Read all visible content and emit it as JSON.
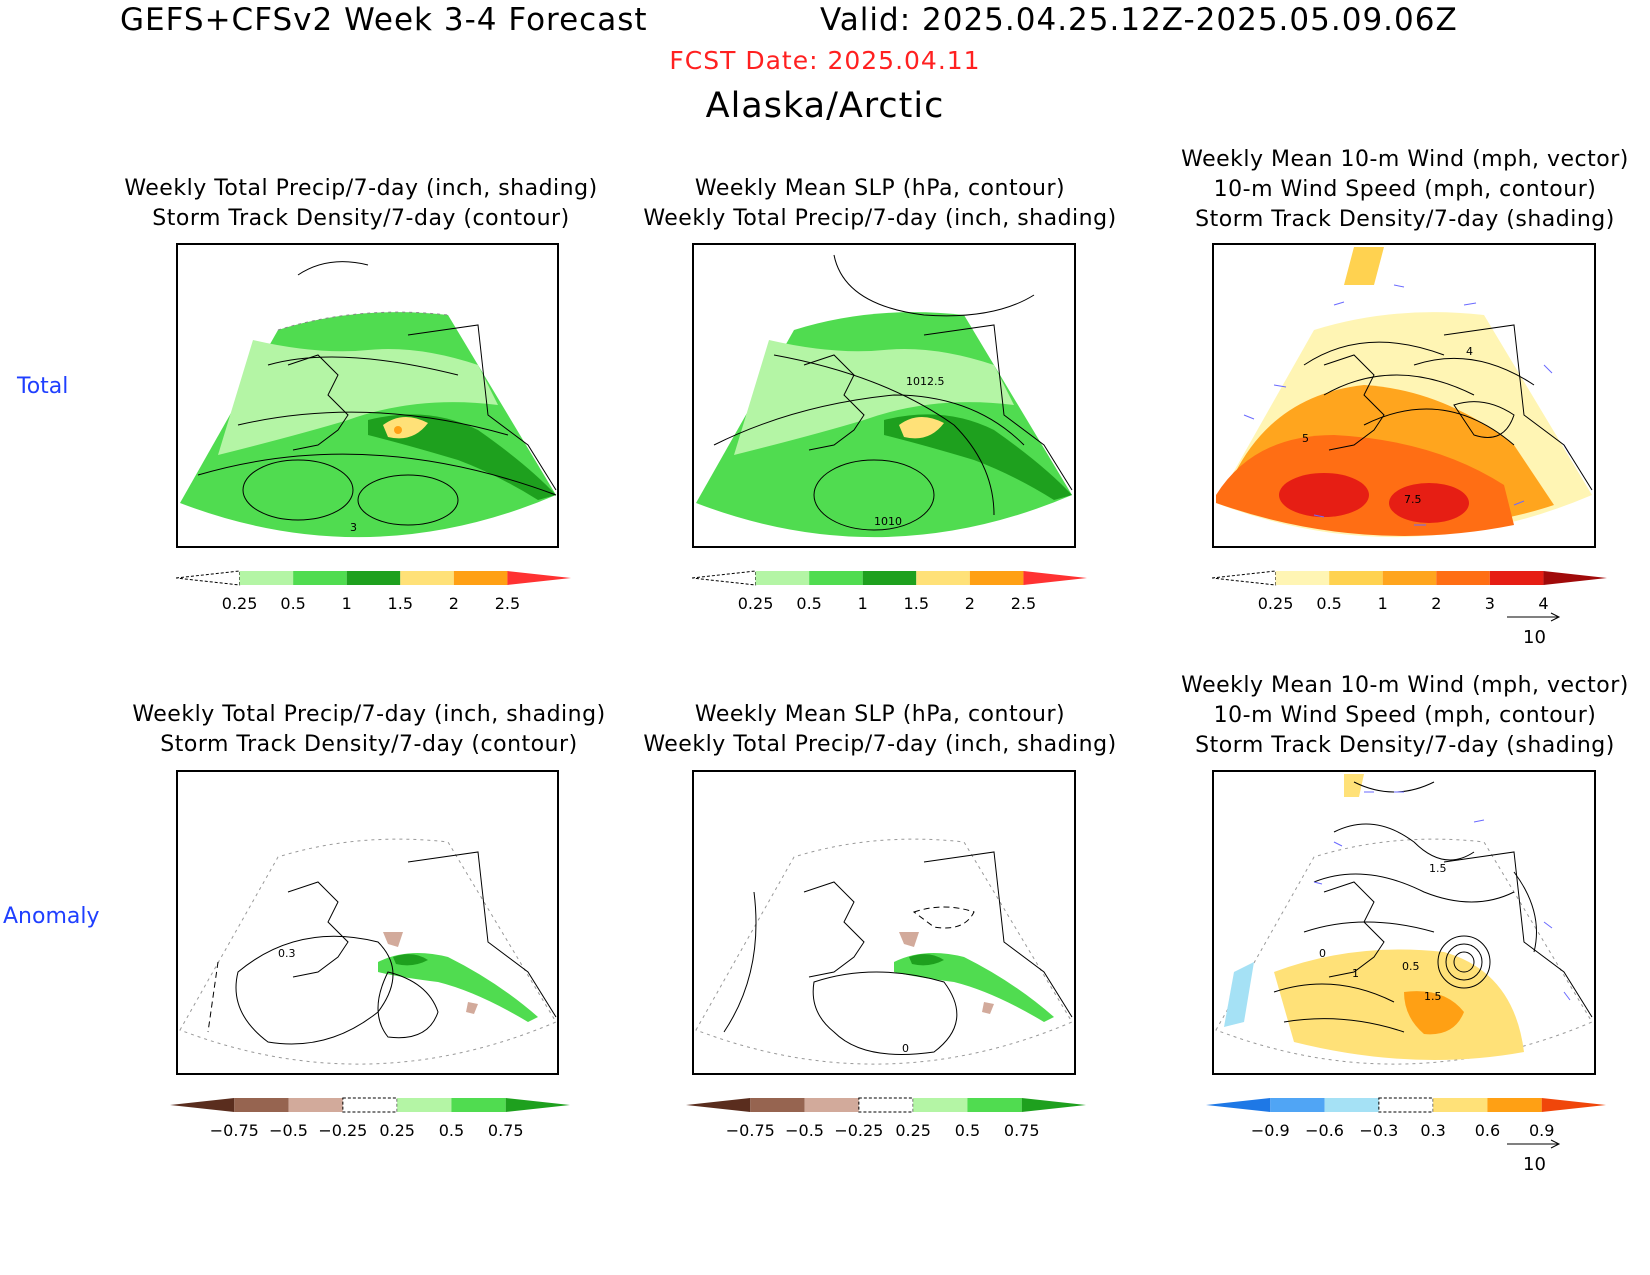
{
  "header": {
    "title": "GEFS+CFSv2 Week 3-4 Forecast",
    "valid": "Valid: 2025.04.25.12Z-2025.05.09.06Z",
    "fcst_date": "FCST Date: 2025.04.11",
    "region": "Alaska/Arctic"
  },
  "rows": {
    "total": "Total",
    "anomaly": "Anomaly"
  },
  "titles": {
    "precip_1": "Weekly Total Precip/7-day (inch, shading)",
    "precip_2": "Storm Track Density/7-day (contour)",
    "slp_1": "Weekly Mean SLP (hPa, contour)",
    "slp_2": "Weekly Total Precip/7-day (inch, shading)",
    "wind_1": "Weekly Mean 10-m Wind (mph, vector)",
    "wind_2": "10-m Wind Speed (mph, contour)",
    "wind_3": "Storm Track Density/7-day (shading)"
  },
  "contour_labels": {
    "p1": "3",
    "p2a": "1012.5",
    "p2b": "1010",
    "p3a": "5",
    "p3b": "4",
    "p3c": "7.5",
    "a1": "0.3",
    "a2": "0",
    "a3a": "0",
    "a3b": "1",
    "a3c": "0.5",
    "a3d": "1.5",
    "a3e": "1.5"
  },
  "colorbars": {
    "precip_total": {
      "colors": [
        "#ffffff",
        "#b4f5a5",
        "#50dc50",
        "#1ea01e",
        "#ffe178",
        "#ffa014",
        "#ff3232"
      ],
      "ticks": [
        "0.25",
        "0.5",
        "1",
        "1.5",
        "2",
        "2.5"
      ]
    },
    "storm_total": {
      "colors": [
        "#ffffff",
        "#fff5b4",
        "#ffd250",
        "#ffa51e",
        "#ff6e14",
        "#e61e14",
        "#a00a0a"
      ],
      "ticks": [
        "0.25",
        "0.5",
        "1",
        "2",
        "3",
        "4"
      ]
    },
    "precip_anom": {
      "colors": [
        "#5a2d1e",
        "#966450",
        "#d2aa9b",
        "#ffffff",
        "#b4f5a5",
        "#50dc50",
        "#1ea01e"
      ],
      "ticks": [
        "−0.75",
        "−0.5",
        "−0.25",
        "0.25",
        "0.5",
        "0.75"
      ]
    },
    "storm_anom": {
      "colors": [
        "#1e78e6",
        "#50a5f5",
        "#a5e1f5",
        "#ffffff",
        "#ffe178",
        "#ffa014",
        "#f0460a"
      ],
      "ticks": [
        "−0.9",
        "−0.6",
        "−0.3",
        "0.3",
        "0.6",
        "0.9"
      ]
    }
  },
  "vector_ref": "10"
}
